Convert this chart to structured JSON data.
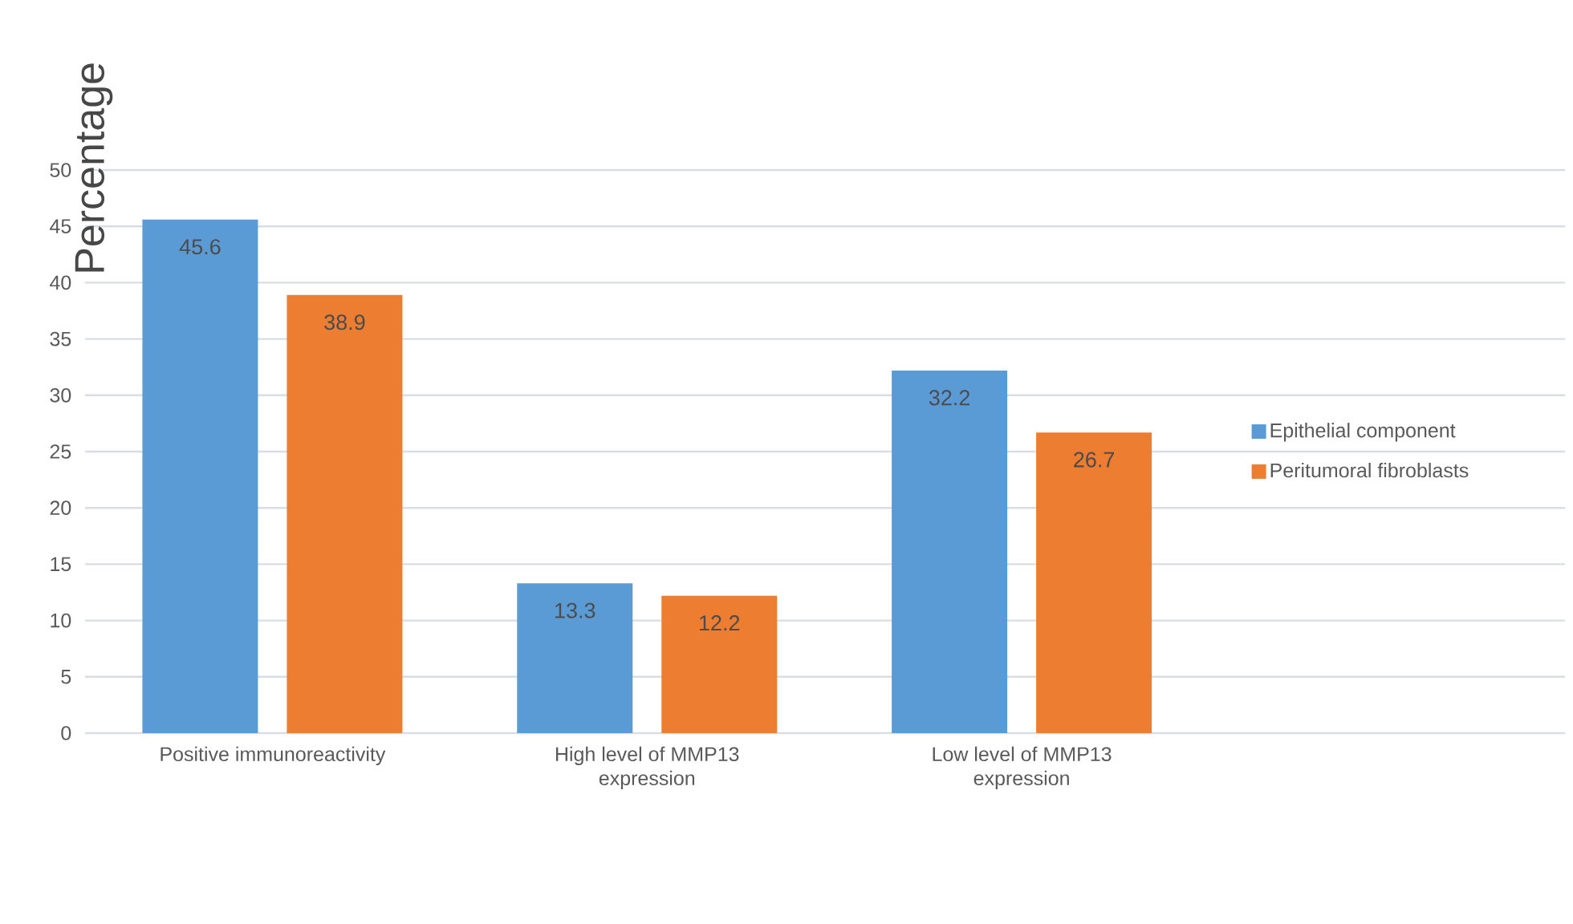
{
  "chart_data": {
    "type": "bar",
    "ylabel": "Percentage",
    "categories": [
      "Positive immunoreactivity",
      "High level of MMP13 expression",
      "Low level of MMP13 expression"
    ],
    "series": [
      {
        "name": "Epithelial component",
        "color": "#5b9bd5",
        "values": [
          45.6,
          13.3,
          32.2
        ]
      },
      {
        "name": "Peritumoral fibroblasts",
        "color": "#ed7d31",
        "values": [
          38.9,
          12.2,
          26.7
        ]
      }
    ],
    "ylim": [
      0,
      50
    ],
    "yticks": [
      0,
      5,
      10,
      15,
      20,
      25,
      30,
      35,
      40,
      45,
      50
    ],
    "grid": "y",
    "legend": "right",
    "data_labels": true
  }
}
